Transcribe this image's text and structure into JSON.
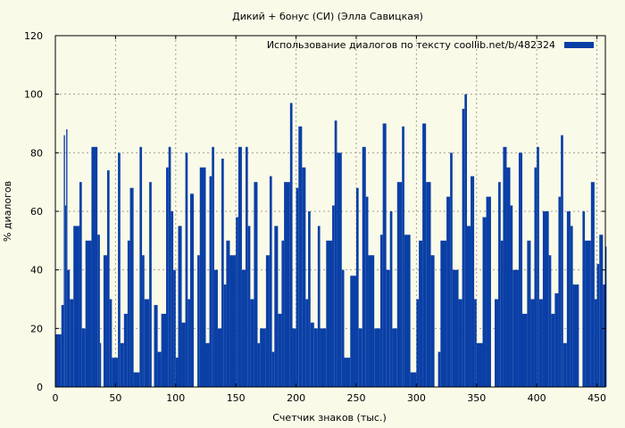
{
  "chart_data": {
    "type": "bar",
    "title": "Дикий + бонус (СИ) (Элла Савицкая)",
    "xlabel": "Счетчик знаков (тыс.)",
    "ylabel": "% диалогов",
    "xlim": [
      0,
      457
    ],
    "ylim": [
      0,
      120
    ],
    "xticks": [
      0,
      50,
      100,
      150,
      200,
      250,
      300,
      350,
      400,
      450
    ],
    "yticks": [
      0,
      20,
      40,
      60,
      80,
      100,
      120
    ],
    "grid": true,
    "legend_position": "top-right",
    "series": [
      {
        "name": "Использование диалогов по тексту  coollib.net/b/482324",
        "color": "#0a3fa6",
        "x": [
          0,
          5,
          7,
          8,
          9,
          10,
          12,
          15,
          20,
          22,
          25,
          30,
          35,
          37,
          38,
          40,
          43,
          45,
          47,
          52,
          54,
          57,
          60,
          62,
          65,
          70,
          72,
          74,
          78,
          80,
          82,
          85,
          88,
          92,
          94,
          96,
          98,
          100,
          102,
          105,
          108,
          110,
          112,
          115,
          118,
          120,
          125,
          128,
          130,
          132,
          135,
          138,
          140,
          142,
          145,
          150,
          152,
          155,
          158,
          160,
          162,
          165,
          168,
          170,
          175,
          178,
          180,
          182,
          185,
          188,
          190,
          195,
          197,
          200,
          202,
          205,
          208,
          210,
          212,
          215,
          218,
          220,
          225,
          230,
          232,
          234,
          238,
          240,
          245,
          250,
          252,
          255,
          258,
          260,
          265,
          270,
          272,
          275,
          278,
          280,
          284,
          288,
          290,
          295,
          300,
          302,
          305,
          308,
          312,
          315,
          318,
          320,
          325,
          328,
          330,
          335,
          338,
          340,
          342,
          345,
          348,
          350,
          355,
          358,
          362,
          365,
          368,
          370,
          372,
          375,
          378,
          380,
          385,
          388,
          392,
          395,
          398,
          400,
          402,
          405,
          410,
          412,
          415,
          418,
          420,
          422,
          425,
          428,
          430,
          435,
          438,
          440,
          445,
          448,
          450,
          452,
          455,
          457
        ],
        "y": [
          18,
          28,
          86,
          62,
          88,
          40,
          30,
          55,
          70,
          20,
          50,
          82,
          52,
          15,
          0,
          45,
          74,
          30,
          10,
          80,
          15,
          25,
          50,
          68,
          5,
          82,
          45,
          30,
          70,
          0,
          28,
          12,
          25,
          75,
          82,
          60,
          40,
          10,
          55,
          22,
          80,
          30,
          66,
          0,
          45,
          75,
          15,
          72,
          82,
          40,
          20,
          78,
          35,
          50,
          45,
          58,
          82,
          40,
          82,
          55,
          30,
          70,
          15,
          20,
          45,
          72,
          12,
          55,
          25,
          50,
          70,
          97,
          20,
          68,
          89,
          75,
          30,
          60,
          22,
          20,
          55,
          20,
          50,
          62,
          91,
          80,
          40,
          10,
          38,
          68,
          20,
          82,
          65,
          45,
          20,
          52,
          90,
          40,
          60,
          20,
          70,
          89,
          52,
          5,
          30,
          50,
          90,
          70,
          45,
          0,
          12,
          50,
          65,
          80,
          40,
          30,
          95,
          100,
          55,
          72,
          30,
          15,
          58,
          65,
          0,
          30,
          70,
          50,
          82,
          75,
          62,
          40,
          80,
          25,
          50,
          30,
          75,
          82,
          30,
          60,
          45,
          25,
          32,
          65,
          86,
          15,
          60,
          55,
          35,
          0,
          60,
          50,
          70,
          30,
          42,
          52,
          35,
          48
        ]
      }
    ]
  }
}
